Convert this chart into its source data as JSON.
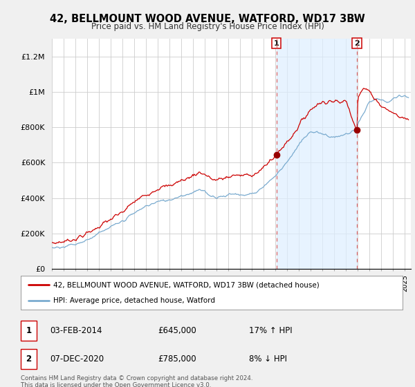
{
  "title": "42, BELLMOUNT WOOD AVENUE, WATFORD, WD17 3BW",
  "subtitle": "Price paid vs. HM Land Registry's House Price Index (HPI)",
  "ylim": [
    0,
    1300000
  ],
  "yticks": [
    0,
    200000,
    400000,
    600000,
    800000,
    1000000,
    1200000
  ],
  "ytick_labels": [
    "£0",
    "£200K",
    "£400K",
    "£600K",
    "£800K",
    "£1M",
    "£1.2M"
  ],
  "background_color": "#f0f0f0",
  "plot_bg_color": "#ffffff",
  "transaction1": {
    "date_num": 2014.08,
    "price": 645000,
    "label": "1",
    "date_str": "03-FEB-2014",
    "pct": "17%",
    "direction": "↑"
  },
  "transaction2": {
    "date_num": 2020.92,
    "price": 785000,
    "label": "2",
    "date_str": "07-DEC-2020",
    "pct": "8%",
    "direction": "↓"
  },
  "legend_line1": "42, BELLMOUNT WOOD AVENUE, WATFORD, WD17 3BW (detached house)",
  "legend_line2": "HPI: Average price, detached house, Watford",
  "footer_line1": "Contains HM Land Registry data © Crown copyright and database right 2024.",
  "footer_line2": "This data is licensed under the Open Government Licence v3.0.",
  "line_color_red": "#cc0000",
  "line_color_blue": "#7aabcf",
  "shade_color": "#ddeeff",
  "vline_color": "#dd6666",
  "xstart": 1995,
  "xend": 2025.5,
  "noise_red": 12000,
  "noise_blue": 8000,
  "n_points": 500
}
